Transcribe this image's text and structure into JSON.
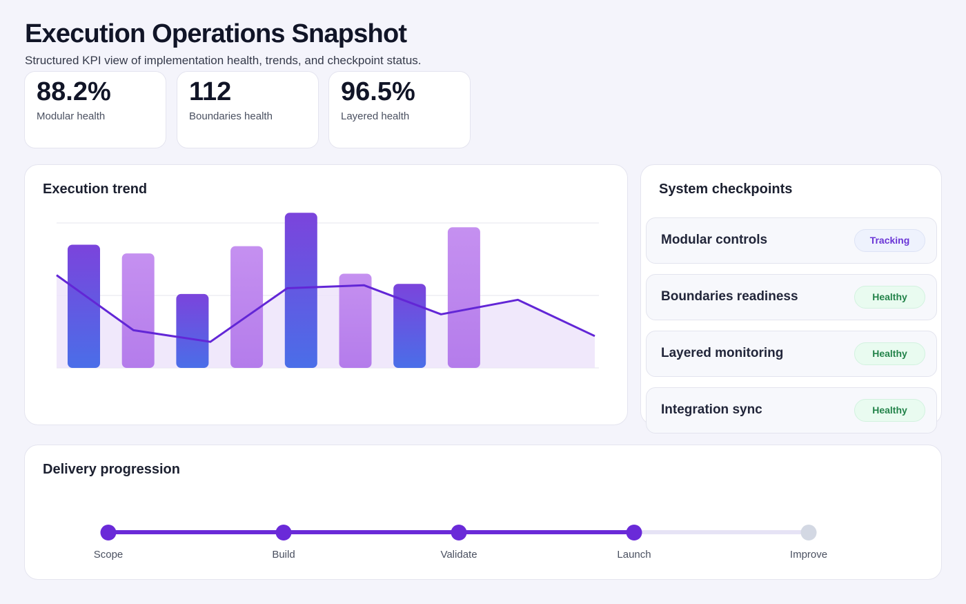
{
  "header": {
    "title": "Execution Operations Snapshot",
    "subtitle": "Structured KPI view of implementation health, trends, and checkpoint status."
  },
  "kpis": [
    {
      "value": "88.2%",
      "label": "Modular health"
    },
    {
      "value": "112",
      "label": "Boundaries health"
    },
    {
      "value": "96.5%",
      "label": "Layered health"
    }
  ],
  "trend": {
    "title": "Execution trend"
  },
  "chart_data": {
    "type": "bar",
    "title": "Execution trend",
    "ylim": [
      0,
      100
    ],
    "grid": true,
    "bars": [
      85,
      79,
      51,
      84,
      107,
      65,
      58,
      97
    ],
    "line": [
      64,
      26,
      18,
      55,
      57,
      37,
      47,
      22
    ],
    "colors": {
      "bar_dark_top": "#7b44dc",
      "bar_dark_bottom": "#4a6ee8",
      "bar_light_top": "#c590f0",
      "bar_light_bottom": "#b47ceb",
      "line": "#6226d6",
      "area": "#ede4fa"
    }
  },
  "checkpoints": {
    "title": "System checkpoints",
    "items": [
      {
        "name": "Modular controls",
        "status": "Tracking"
      },
      {
        "name": "Boundaries readiness",
        "status": "Healthy"
      },
      {
        "name": "Layered monitoring",
        "status": "Healthy"
      },
      {
        "name": "Integration sync",
        "status": "Healthy"
      }
    ]
  },
  "delivery": {
    "title": "Delivery progression",
    "completed_steps": 4,
    "steps": [
      "Scope",
      "Build",
      "Validate",
      "Launch",
      "Improve"
    ],
    "colors": {
      "done": "#6a2ad8",
      "pending": "#d3d8e3"
    }
  }
}
